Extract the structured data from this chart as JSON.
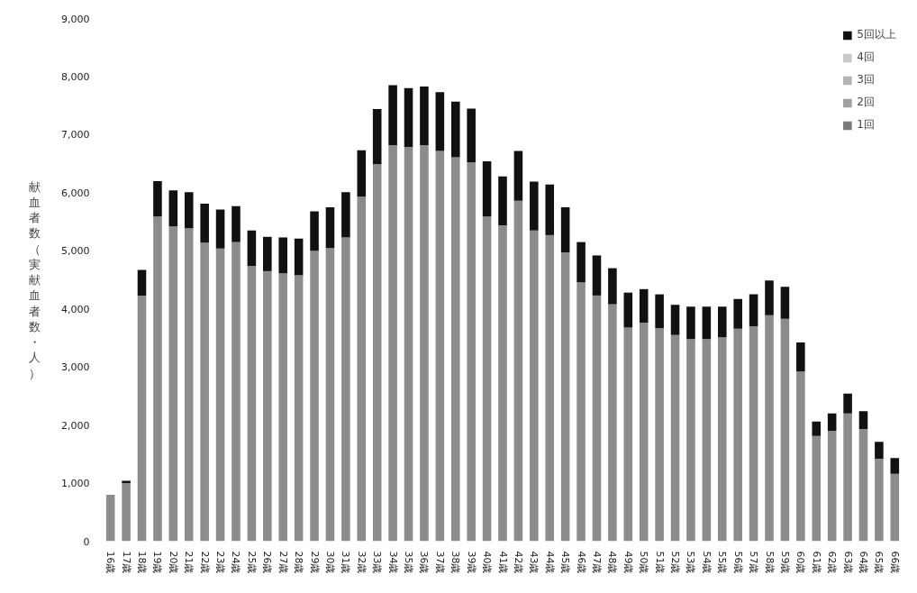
{
  "chart_data": {
    "type": "bar",
    "stacked": true,
    "ylabel": "献血者数（実献血者数・人）",
    "categories": [
      "16歳",
      "17歳",
      "18歳",
      "19歳",
      "20歳",
      "21歳",
      "22歳",
      "23歳",
      "24歳",
      "25歳",
      "26歳",
      "27歳",
      "28歳",
      "29歳",
      "30歳",
      "31歳",
      "32歳",
      "33歳",
      "34歳",
      "35歳",
      "36歳",
      "37歳",
      "38歳",
      "39歳",
      "40歳",
      "41歳",
      "42歳",
      "43歳",
      "44歳",
      "45歳",
      "46歳",
      "47歳",
      "48歳",
      "49歳",
      "50歳",
      "51歳",
      "52歳",
      "53歳",
      "54歳",
      "55歳",
      "56歳",
      "57歳",
      "58歳",
      "59歳",
      "60歳",
      "61歳",
      "62歳",
      "63歳",
      "64歳",
      "65歳",
      "66歳"
    ],
    "series": [
      {
        "color": "#8c8c8c",
        "values": [
          800,
          1000,
          4230,
          5590,
          5420,
          5390,
          5140,
          5040,
          5150,
          4740,
          4650,
          4610,
          4580,
          5000,
          5050,
          5230,
          5930,
          6490,
          6820,
          6790,
          6820,
          6720,
          6610,
          6520,
          5590,
          5440,
          5860,
          5350,
          5270,
          4970,
          4460,
          4230,
          4080,
          3680,
          3760,
          3670,
          3550,
          3480,
          3480,
          3510,
          3660,
          3700,
          3890,
          3830,
          2920,
          1810,
          1900,
          2200,
          1930,
          1420,
          1160
        ]
      },
      {
        "name": "1回",
        "color": "#7a7a7a",
        "values": [
          null,
          null,
          null,
          null,
          null,
          null,
          null,
          null,
          null,
          null,
          null,
          null,
          null,
          null,
          null,
          null,
          null,
          null,
          null,
          null,
          null,
          null,
          null,
          null,
          null,
          null,
          null,
          null,
          null,
          null,
          null,
          null,
          null,
          null,
          null,
          null,
          null,
          null,
          null,
          null,
          null,
          null,
          null,
          null,
          null,
          null,
          null,
          null,
          null,
          null,
          null
        ]
      },
      {
        "name": "2回",
        "color": "#a0a0a0",
        "values": [
          null,
          null,
          null,
          null,
          null,
          null,
          null,
          null,
          null,
          null,
          null,
          null,
          null,
          null,
          null,
          null,
          null,
          null,
          null,
          null,
          null,
          null,
          null,
          null,
          null,
          null,
          null,
          null,
          null,
          null,
          null,
          null,
          null,
          null,
          null,
          null,
          null,
          null,
          null,
          null,
          null,
          null,
          null,
          null,
          null,
          null,
          null,
          null,
          null,
          null,
          null
        ]
      },
      {
        "name": "3回",
        "color": "#b4b4b4",
        "values": [
          null,
          null,
          null,
          null,
          null,
          null,
          null,
          null,
          null,
          null,
          null,
          null,
          null,
          null,
          null,
          null,
          null,
          null,
          null,
          null,
          null,
          null,
          null,
          null,
          null,
          null,
          null,
          null,
          null,
          null,
          null,
          null,
          null,
          null,
          null,
          null,
          null,
          null,
          null,
          null,
          null,
          null,
          null,
          null,
          null,
          null,
          null,
          null,
          null,
          null,
          null
        ]
      },
      {
        "name": "4回",
        "color": "#c8c8c8",
        "values": [
          null,
          null,
          null,
          null,
          null,
          null,
          null,
          null,
          null,
          null,
          null,
          null,
          null,
          null,
          null,
          null,
          null,
          null,
          null,
          null,
          null,
          null,
          null,
          null,
          null,
          null,
          null,
          null,
          null,
          null,
          null,
          null,
          null,
          null,
          null,
          null,
          null,
          null,
          null,
          null,
          null,
          null,
          null,
          null,
          null,
          null,
          null,
          null,
          null,
          null,
          null
        ]
      },
      {
        "name": "5回以上",
        "color": "#111111",
        "values": [
          0,
          40,
          440,
          610,
          620,
          620,
          670,
          670,
          620,
          610,
          590,
          620,
          630,
          680,
          700,
          780,
          800,
          950,
          1030,
          1010,
          1010,
          1010,
          960,
          930,
          950,
          840,
          860,
          840,
          870,
          780,
          690,
          690,
          620,
          600,
          580,
          580,
          520,
          560,
          560,
          530,
          510,
          550,
          600,
          550,
          500,
          250,
          300,
          340,
          310,
          290,
          270
        ]
      }
    ],
    "ylim": [
      0,
      9000
    ],
    "yticks": [
      {
        "value": 0,
        "label": "0"
      },
      {
        "value": 1000,
        "label": "1,000"
      },
      {
        "value": 2000,
        "label": "2,000"
      },
      {
        "value": 3000,
        "label": "3,000"
      },
      {
        "value": 4000,
        "label": "4,000"
      },
      {
        "value": 5000,
        "label": "5,000"
      },
      {
        "value": 6000,
        "label": "6,000"
      },
      {
        "value": 7000,
        "label": "7,000"
      },
      {
        "value": 8000,
        "label": "8,000"
      },
      {
        "value": 9000,
        "label": "9,000"
      }
    ],
    "grid": false,
    "legend": "top right"
  }
}
